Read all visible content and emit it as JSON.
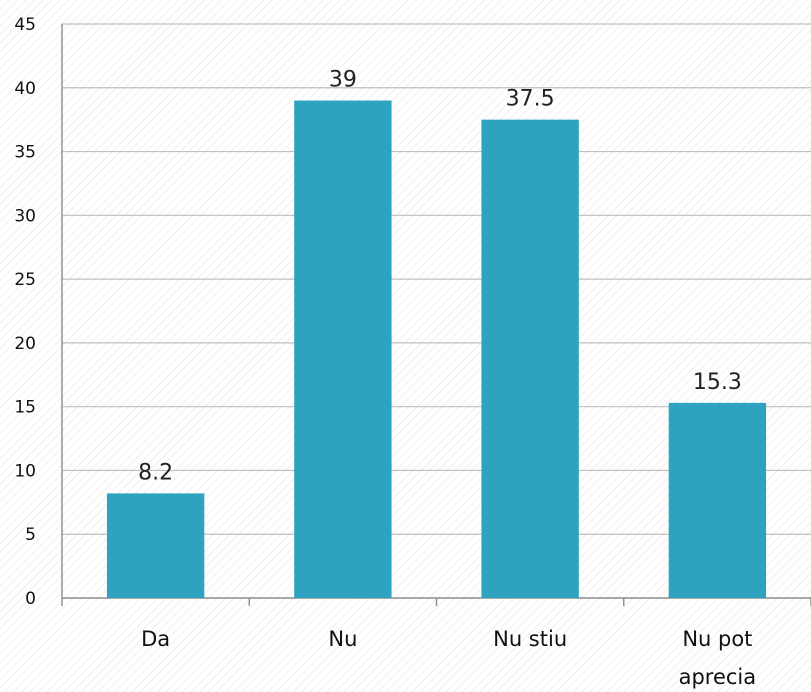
{
  "chart_data": {
    "type": "bar",
    "categories": [
      [
        "Da"
      ],
      [
        "Nu"
      ],
      [
        "Nu stiu"
      ],
      [
        "Nu pot",
        "aprecia"
      ]
    ],
    "values": [
      8.2,
      39,
      37.5,
      15.3
    ],
    "value_labels": [
      "8.2",
      "39",
      "37.5",
      "15.3"
    ],
    "ylim": [
      0,
      45
    ],
    "yticks": [
      0,
      5,
      10,
      15,
      20,
      25,
      30,
      35,
      40,
      45
    ],
    "grid": true,
    "bar_color": "#2ea3bf",
    "title": "",
    "xlabel": "",
    "ylabel": ""
  }
}
